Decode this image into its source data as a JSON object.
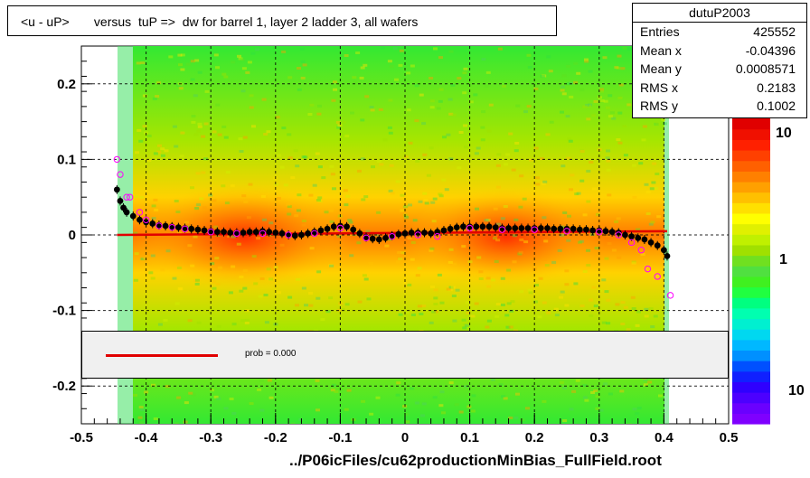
{
  "title": "<u - uP>       versus  tuP =>  dw for barrel 1, layer 2 ladder 3, all wafers",
  "stats": {
    "name": "dutuP2003",
    "rows": [
      {
        "key": "Entries",
        "value": "425552"
      },
      {
        "key": "Mean x",
        "value": "-0.04396"
      },
      {
        "key": "Mean y",
        "value": "0.0008571"
      },
      {
        "key": "RMS x",
        "value": "0.2183"
      },
      {
        "key": "RMS y",
        "value": "0.1002"
      }
    ]
  },
  "legend": {
    "text": "prob = 0.000",
    "line_color": "#e10000"
  },
  "colors": {
    "mean_marker": "#000000",
    "alt_marker": "#ff00ff",
    "fit_line": "#e10000"
  },
  "chart_data": {
    "type": "heatmap",
    "title": "<u - uP>       versus  tuP =>  dw for barrel 1, layer 2 ladder 3, all wafers",
    "xlabel": "../P06icFiles/cu62productionMinBias_FullField.root",
    "ylabel": "",
    "xlim": [
      -0.5,
      0.5
    ],
    "ylim": [
      -0.25,
      0.25
    ],
    "x_ticks": [
      "-0.5",
      "-0.4",
      "-0.3",
      "-0.2",
      "-0.1",
      "0",
      "0.1",
      "0.2",
      "0.3",
      "0.4",
      "0.5"
    ],
    "y_ticks": [
      "-0.2",
      "-0.1",
      "0",
      "0.1",
      "0.2"
    ],
    "grid": true,
    "colorbar_labels": [
      "10",
      "1",
      "10"
    ],
    "colorbar": [
      "#7f00ff",
      "#6a00ff",
      "#4c00ff",
      "#2f00ff",
      "#1020ff",
      "#0050ff",
      "#0090ff",
      "#00b8ff",
      "#00d8f0",
      "#00f0d0",
      "#00ffb0",
      "#00ff80",
      "#20ff40",
      "#40f020",
      "#50e040",
      "#70e020",
      "#a0e000",
      "#c0f000",
      "#e0f000",
      "#ffff00",
      "#ffe000",
      "#ffc000",
      "#ffa000",
      "#ff8000",
      "#ff6000",
      "#ff4000",
      "#ff2000",
      "#f01000",
      "#e00000"
    ],
    "fit_line": {
      "x": [
        -0.445,
        0.405
      ],
      "y": [
        0.0,
        0.005
      ]
    },
    "series": [
      {
        "marker": "filled-circle",
        "x": [
          -0.445,
          -0.44,
          -0.435,
          -0.43,
          -0.42,
          -0.41,
          -0.4,
          -0.39,
          -0.38,
          -0.37,
          -0.36,
          -0.35,
          -0.34,
          -0.33,
          -0.32,
          -0.31,
          -0.3,
          -0.29,
          -0.28,
          -0.27,
          -0.26,
          -0.25,
          -0.24,
          -0.23,
          -0.22,
          -0.21,
          -0.2,
          -0.19,
          -0.18,
          -0.17,
          -0.16,
          -0.15,
          -0.14,
          -0.13,
          -0.12,
          -0.11,
          -0.1,
          -0.09,
          -0.08,
          -0.07,
          -0.06,
          -0.05,
          -0.04,
          -0.03,
          -0.02,
          -0.01,
          0.0,
          0.01,
          0.02,
          0.03,
          0.04,
          0.05,
          0.06,
          0.07,
          0.08,
          0.09,
          0.1,
          0.11,
          0.12,
          0.13,
          0.14,
          0.15,
          0.16,
          0.17,
          0.18,
          0.19,
          0.2,
          0.21,
          0.22,
          0.23,
          0.24,
          0.25,
          0.26,
          0.27,
          0.28,
          0.29,
          0.3,
          0.31,
          0.32,
          0.33,
          0.34,
          0.35,
          0.36,
          0.37,
          0.38,
          0.39,
          0.4,
          0.405
        ],
        "y": [
          0.06,
          0.045,
          0.036,
          0.03,
          0.025,
          0.02,
          0.017,
          0.015,
          0.013,
          0.012,
          0.011,
          0.01,
          0.009,
          0.008,
          0.007,
          0.006,
          0.005,
          0.004,
          0.004,
          0.003,
          0.003,
          0.003,
          0.004,
          0.004,
          0.005,
          0.004,
          0.003,
          0.002,
          0.0,
          -0.001,
          0.0,
          0.002,
          0.004,
          0.006,
          0.008,
          0.011,
          0.012,
          0.011,
          0.007,
          0.002,
          -0.003,
          -0.005,
          -0.006,
          -0.004,
          -0.001,
          0.001,
          0.002,
          0.003,
          0.003,
          0.003,
          0.002,
          0.004,
          0.006,
          0.008,
          0.01,
          0.011,
          0.011,
          0.011,
          0.011,
          0.011,
          0.01,
          0.009,
          0.009,
          0.009,
          0.009,
          0.009,
          0.009,
          0.009,
          0.009,
          0.008,
          0.008,
          0.008,
          0.008,
          0.007,
          0.007,
          0.006,
          0.006,
          0.005,
          0.004,
          0.003,
          0.0,
          -0.002,
          -0.004,
          -0.006,
          -0.01,
          -0.014,
          -0.02,
          -0.028
        ]
      },
      {
        "marker": "open-circle",
        "x": [
          -0.445,
          -0.44,
          -0.43,
          -0.425,
          -0.41,
          -0.4,
          -0.38,
          -0.36,
          -0.34,
          -0.3,
          -0.26,
          -0.22,
          -0.18,
          -0.14,
          -0.1,
          -0.06,
          -0.02,
          0.02,
          0.05,
          0.1,
          0.15,
          0.2,
          0.25,
          0.3,
          0.33,
          0.35,
          0.365,
          0.375,
          0.39,
          0.41
        ],
        "y": [
          0.1,
          0.08,
          0.05,
          0.05,
          0.03,
          0.02,
          0.012,
          0.01,
          0.008,
          0.004,
          0.002,
          0.002,
          0.0,
          0.002,
          0.009,
          -0.004,
          -0.002,
          0.0,
          -0.002,
          0.009,
          0.007,
          0.007,
          0.005,
          0.004,
          0.0,
          -0.01,
          -0.02,
          -0.045,
          -0.055,
          -0.08
        ]
      }
    ]
  }
}
